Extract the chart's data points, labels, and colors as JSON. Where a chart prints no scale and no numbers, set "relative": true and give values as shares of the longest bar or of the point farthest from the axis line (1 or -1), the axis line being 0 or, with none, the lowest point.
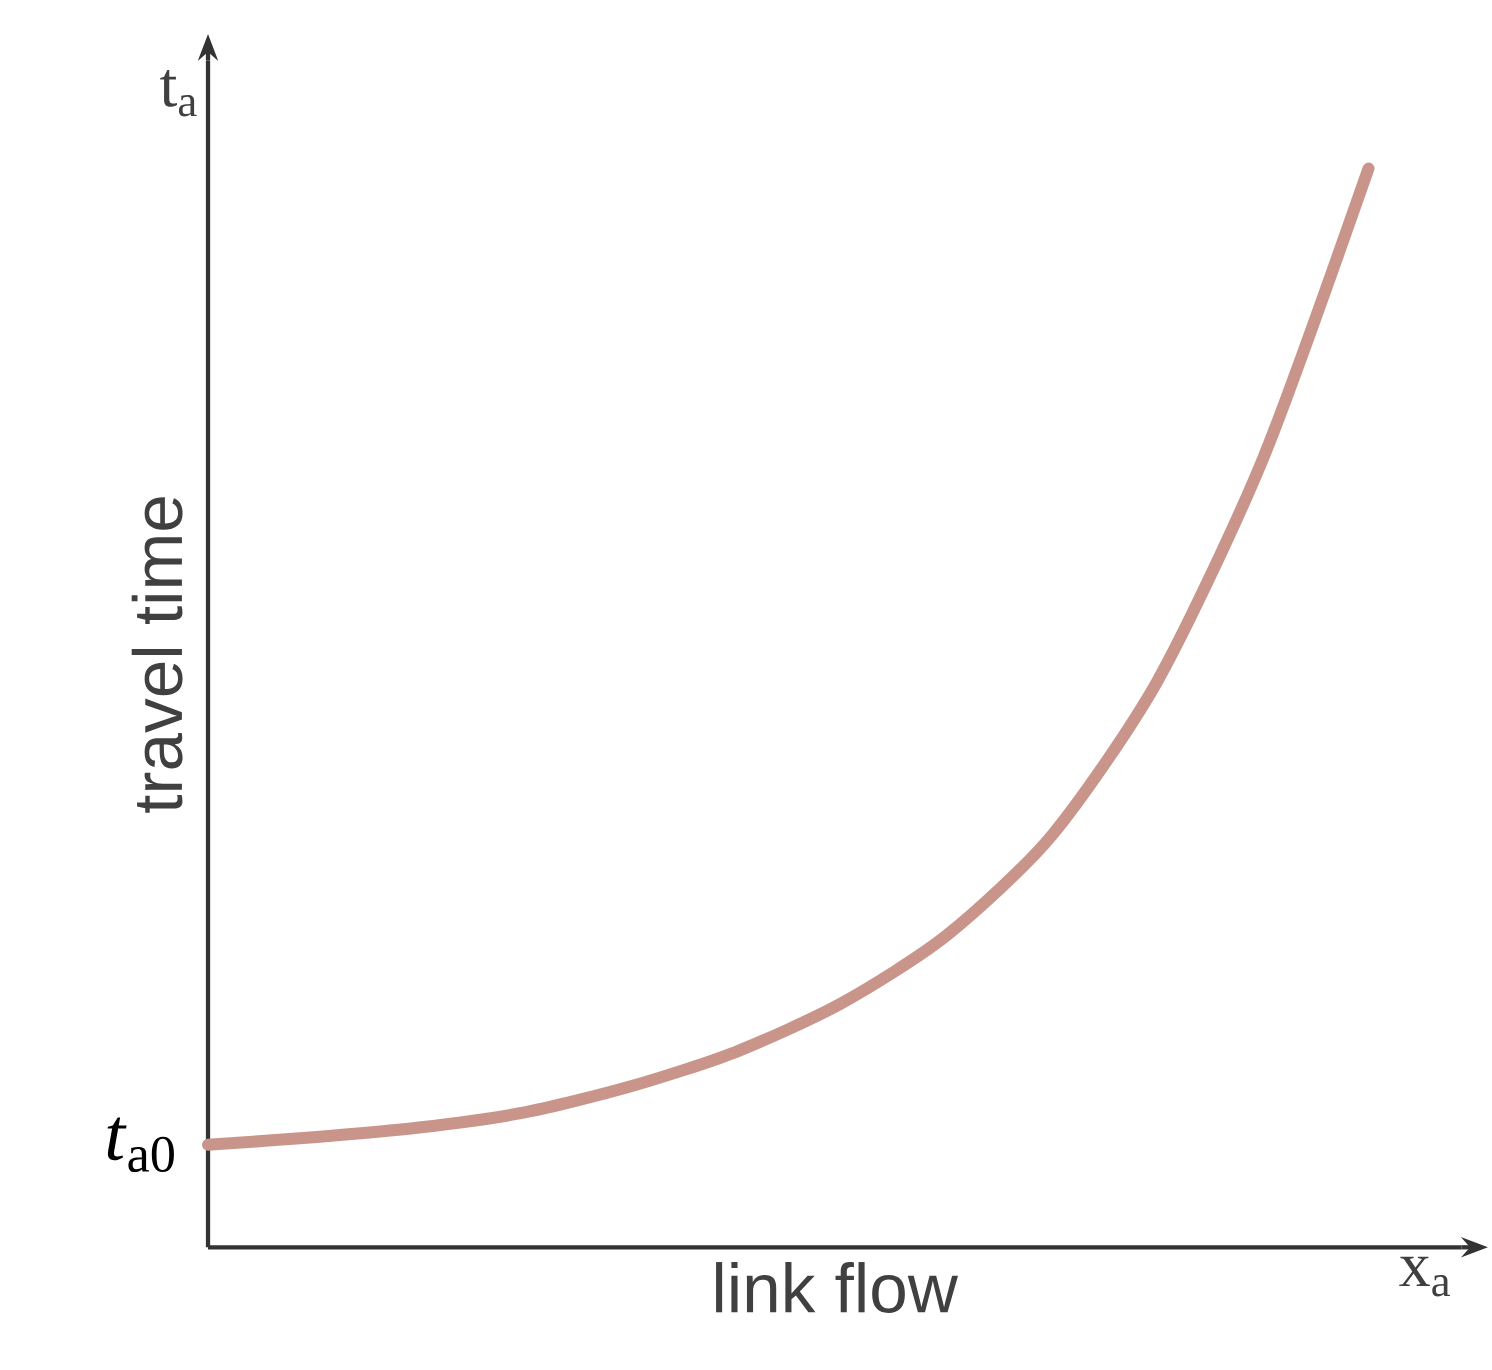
{
  "chart_data": {
    "type": "line",
    "relative": true,
    "xlabel": "link flow",
    "ylabel": "travel time",
    "color": "#c9958a",
    "categories": [
      null,
      null,
      null,
      null,
      null,
      null,
      null,
      null,
      null,
      null,
      null,
      null
    ],
    "values": [
      0.095,
      0.102,
      0.111,
      0.125,
      0.149,
      0.181,
      0.226,
      0.289,
      0.382,
      0.525,
      0.731,
      1
    ],
    "annotations": [
      "t$_{a}$",
      "x$_{a}$",
      "*t*$_{a0}$"
    ]
  }
}
